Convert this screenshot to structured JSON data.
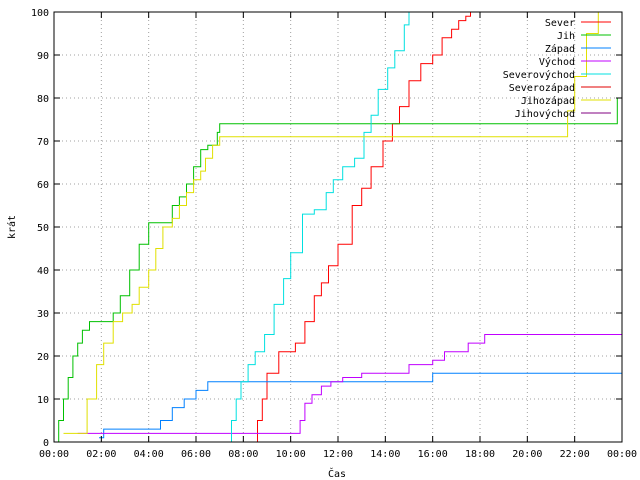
{
  "chart_data": {
    "type": "line",
    "title": "",
    "xlabel": "Čas",
    "ylabel": "krát",
    "xlim": [
      0,
      24
    ],
    "ylim": [
      0,
      100
    ],
    "grid": true,
    "legend_position": "top-right",
    "x_ticks": [
      "00:00",
      "02:00",
      "04:00",
      "06:00",
      "08:00",
      "10:00",
      "12:00",
      "14:00",
      "16:00",
      "18:00",
      "20:00",
      "22:00",
      "00:00"
    ],
    "y_ticks": [
      "0",
      "10",
      "20",
      "30",
      "40",
      "50",
      "60",
      "70",
      "80",
      "90",
      "100"
    ],
    "series": [
      {
        "name": "Sever",
        "color": "#ff0000",
        "x": [
          8.4,
          8.6,
          8.8,
          9.0,
          9.5,
          10.2,
          10.6,
          11.0,
          11.3,
          11.6,
          12.0,
          12.6,
          13.0,
          13.4,
          13.9,
          14.3,
          14.6,
          15.0,
          15.5,
          16.0,
          16.4,
          16.8,
          17.1,
          17.4,
          17.6
        ],
        "y": [
          0,
          5,
          10,
          16,
          21,
          23,
          28,
          34,
          37,
          41,
          46,
          55,
          59,
          64,
          70,
          74,
          78,
          84,
          88,
          90,
          94,
          96,
          98,
          99,
          100
        ]
      },
      {
        "name": "Jih",
        "color": "#00c000",
        "x": [
          0.0,
          0.2,
          0.4,
          0.6,
          0.8,
          1.0,
          1.2,
          1.5,
          2.0,
          2.5,
          2.8,
          3.2,
          3.6,
          4.0,
          4.6,
          5.0,
          5.3,
          5.6,
          5.9,
          6.2,
          6.5,
          6.9,
          7.0,
          21.5,
          23.5,
          23.8,
          24.0
        ],
        "y": [
          0,
          5,
          10,
          15,
          20,
          23,
          26,
          28,
          28,
          30,
          34,
          40,
          46,
          51,
          51,
          55,
          57,
          60,
          64,
          68,
          69,
          72,
          74,
          74,
          74,
          80,
          87
        ]
      },
      {
        "name": "Západ",
        "color": "#0080ff",
        "x": [
          1.9,
          2.1,
          3.5,
          4.5,
          5.0,
          5.5,
          6.0,
          6.5,
          16.0,
          24.0
        ],
        "y": [
          1,
          3,
          3,
          5,
          8,
          10,
          12,
          14,
          16,
          16
        ]
      },
      {
        "name": "Východ",
        "color": "#c000ff",
        "x": [
          1.0,
          10.2,
          10.4,
          10.6,
          10.9,
          11.3,
          11.7,
          12.2,
          13.0,
          14.0,
          15.0,
          16.0,
          16.5,
          17.0,
          17.5,
          18.2,
          18.6,
          20.0,
          24.0
        ],
        "y": [
          2,
          2,
          5,
          9,
          11,
          13,
          14,
          15,
          16,
          16,
          18,
          19,
          21,
          21,
          23,
          25,
          25,
          25,
          25
        ]
      },
      {
        "name": "Severovýchod",
        "color": "#00e0e0",
        "x": [
          7.3,
          7.5,
          7.7,
          7.9,
          8.2,
          8.5,
          8.9,
          9.3,
          9.7,
          10.0,
          10.5,
          11.0,
          11.5,
          11.8,
          12.2,
          12.7,
          13.1,
          13.4,
          13.7,
          14.1,
          14.4,
          14.8,
          15.0,
          15.1
        ],
        "y": [
          0,
          5,
          10,
          14,
          18,
          21,
          25,
          32,
          38,
          44,
          53,
          54,
          58,
          61,
          64,
          66,
          72,
          76,
          82,
          87,
          91,
          97,
          100,
          100
        ]
      },
      {
        "name": "Severozápad",
        "color": "#e00000",
        "x": [],
        "y": []
      },
      {
        "name": "Jihozápad",
        "color": "#e0e000",
        "x": [
          0.4,
          1.0,
          1.4,
          1.8,
          2.1,
          2.5,
          2.9,
          3.3,
          3.6,
          4.0,
          4.3,
          4.6,
          5.0,
          5.3,
          5.6,
          5.9,
          6.2,
          6.4,
          6.7,
          7.0,
          21.5,
          21.7,
          22.0,
          22.5,
          23.0
        ],
        "y": [
          2,
          2,
          10,
          18,
          23,
          28,
          30,
          32,
          36,
          40,
          45,
          50,
          52,
          55,
          58,
          61,
          63,
          66,
          69,
          71,
          71,
          77,
          85,
          95,
          100
        ]
      },
      {
        "name": "Jihovýchod",
        "color": "#800080",
        "x": [],
        "y": []
      }
    ]
  }
}
